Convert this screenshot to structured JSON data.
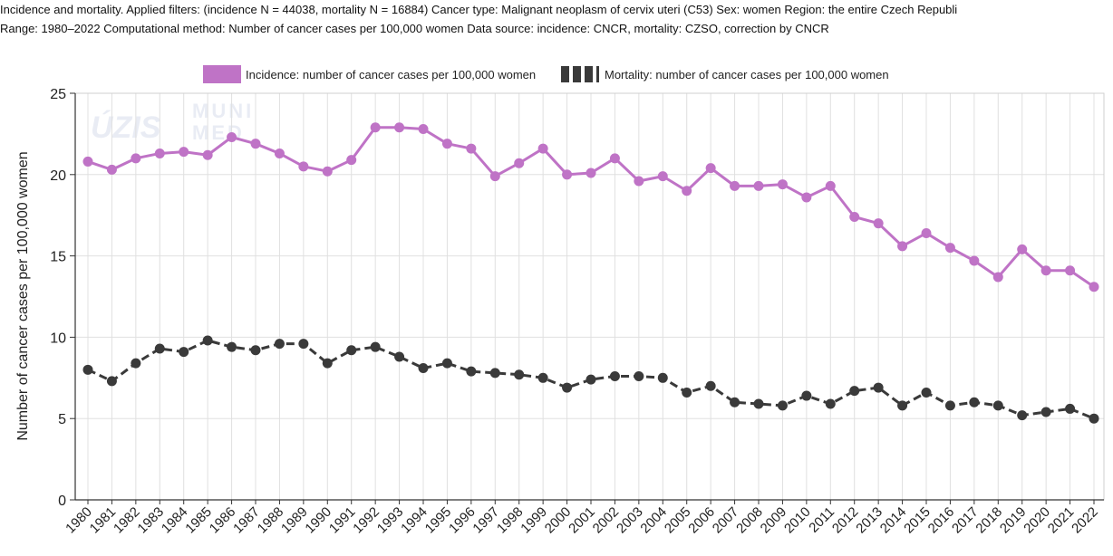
{
  "header": {
    "line1": "Incidence and mortality. Applied filters: (incidence N = 44038, mortality N = 16884) Cancer type: Malignant neoplasm of cervix uteri (C53) Sex: women Region: the entire Czech Republi",
    "line2": "Range: 1980–2022 Computational method: Number of cancer cases per 100,000 women Data source: incidence: CNCR, mortality: CZSO, correction by CNCR"
  },
  "watermark": {
    "left": "ÚZIS",
    "right_top": "MUNI",
    "right_bottom": "MED"
  },
  "colors": {
    "incidence": "#bf73c6",
    "mortality": "#3a3a3a",
    "grid": "#e0e0e0",
    "axis": "#333333"
  },
  "chart_data": {
    "type": "line",
    "title": "",
    "xlabel": "",
    "ylabel": "Number of cancer cases per 100,000 women",
    "ylim": [
      0,
      25
    ],
    "yticks": [
      0,
      5,
      10,
      15,
      20,
      25
    ],
    "grid": true,
    "legend_position": "top-center",
    "x": [
      1980,
      1981,
      1982,
      1983,
      1984,
      1985,
      1986,
      1987,
      1988,
      1989,
      1990,
      1991,
      1992,
      1993,
      1994,
      1995,
      1996,
      1997,
      1998,
      1999,
      2000,
      2001,
      2002,
      2003,
      2004,
      2005,
      2006,
      2007,
      2008,
      2009,
      2010,
      2011,
      2012,
      2013,
      2014,
      2015,
      2016,
      2017,
      2018,
      2019,
      2020,
      2021,
      2022
    ],
    "series": [
      {
        "name": "Incidence: number of cancer cases per 100,000 women",
        "style": "solid",
        "color": "#bf73c6",
        "values": [
          20.8,
          20.3,
          21.0,
          21.3,
          21.4,
          21.2,
          22.3,
          21.9,
          21.3,
          20.5,
          20.2,
          20.9,
          22.9,
          22.9,
          22.8,
          21.9,
          21.6,
          19.9,
          20.7,
          21.6,
          20.0,
          20.1,
          21.0,
          19.6,
          19.9,
          19.0,
          20.4,
          19.3,
          19.3,
          19.4,
          18.6,
          19.3,
          17.4,
          17.0,
          15.6,
          16.4,
          15.5,
          14.7,
          13.7,
          15.4,
          14.1,
          14.1,
          13.1
        ]
      },
      {
        "name": "Mortality: number of cancer cases per 100,000 women",
        "style": "dashed",
        "color": "#3a3a3a",
        "values": [
          8.0,
          7.3,
          8.4,
          9.3,
          9.1,
          9.8,
          9.4,
          9.2,
          9.6,
          9.6,
          8.4,
          9.2,
          9.4,
          8.8,
          8.1,
          8.4,
          7.9,
          7.8,
          7.7,
          7.5,
          6.9,
          7.4,
          7.6,
          7.6,
          7.5,
          6.6,
          7.0,
          6.0,
          5.9,
          5.8,
          6.4,
          5.9,
          6.7,
          6.9,
          5.8,
          6.6,
          5.8,
          6.0,
          5.8,
          5.2,
          5.4,
          5.6,
          5.0
        ]
      }
    ]
  }
}
